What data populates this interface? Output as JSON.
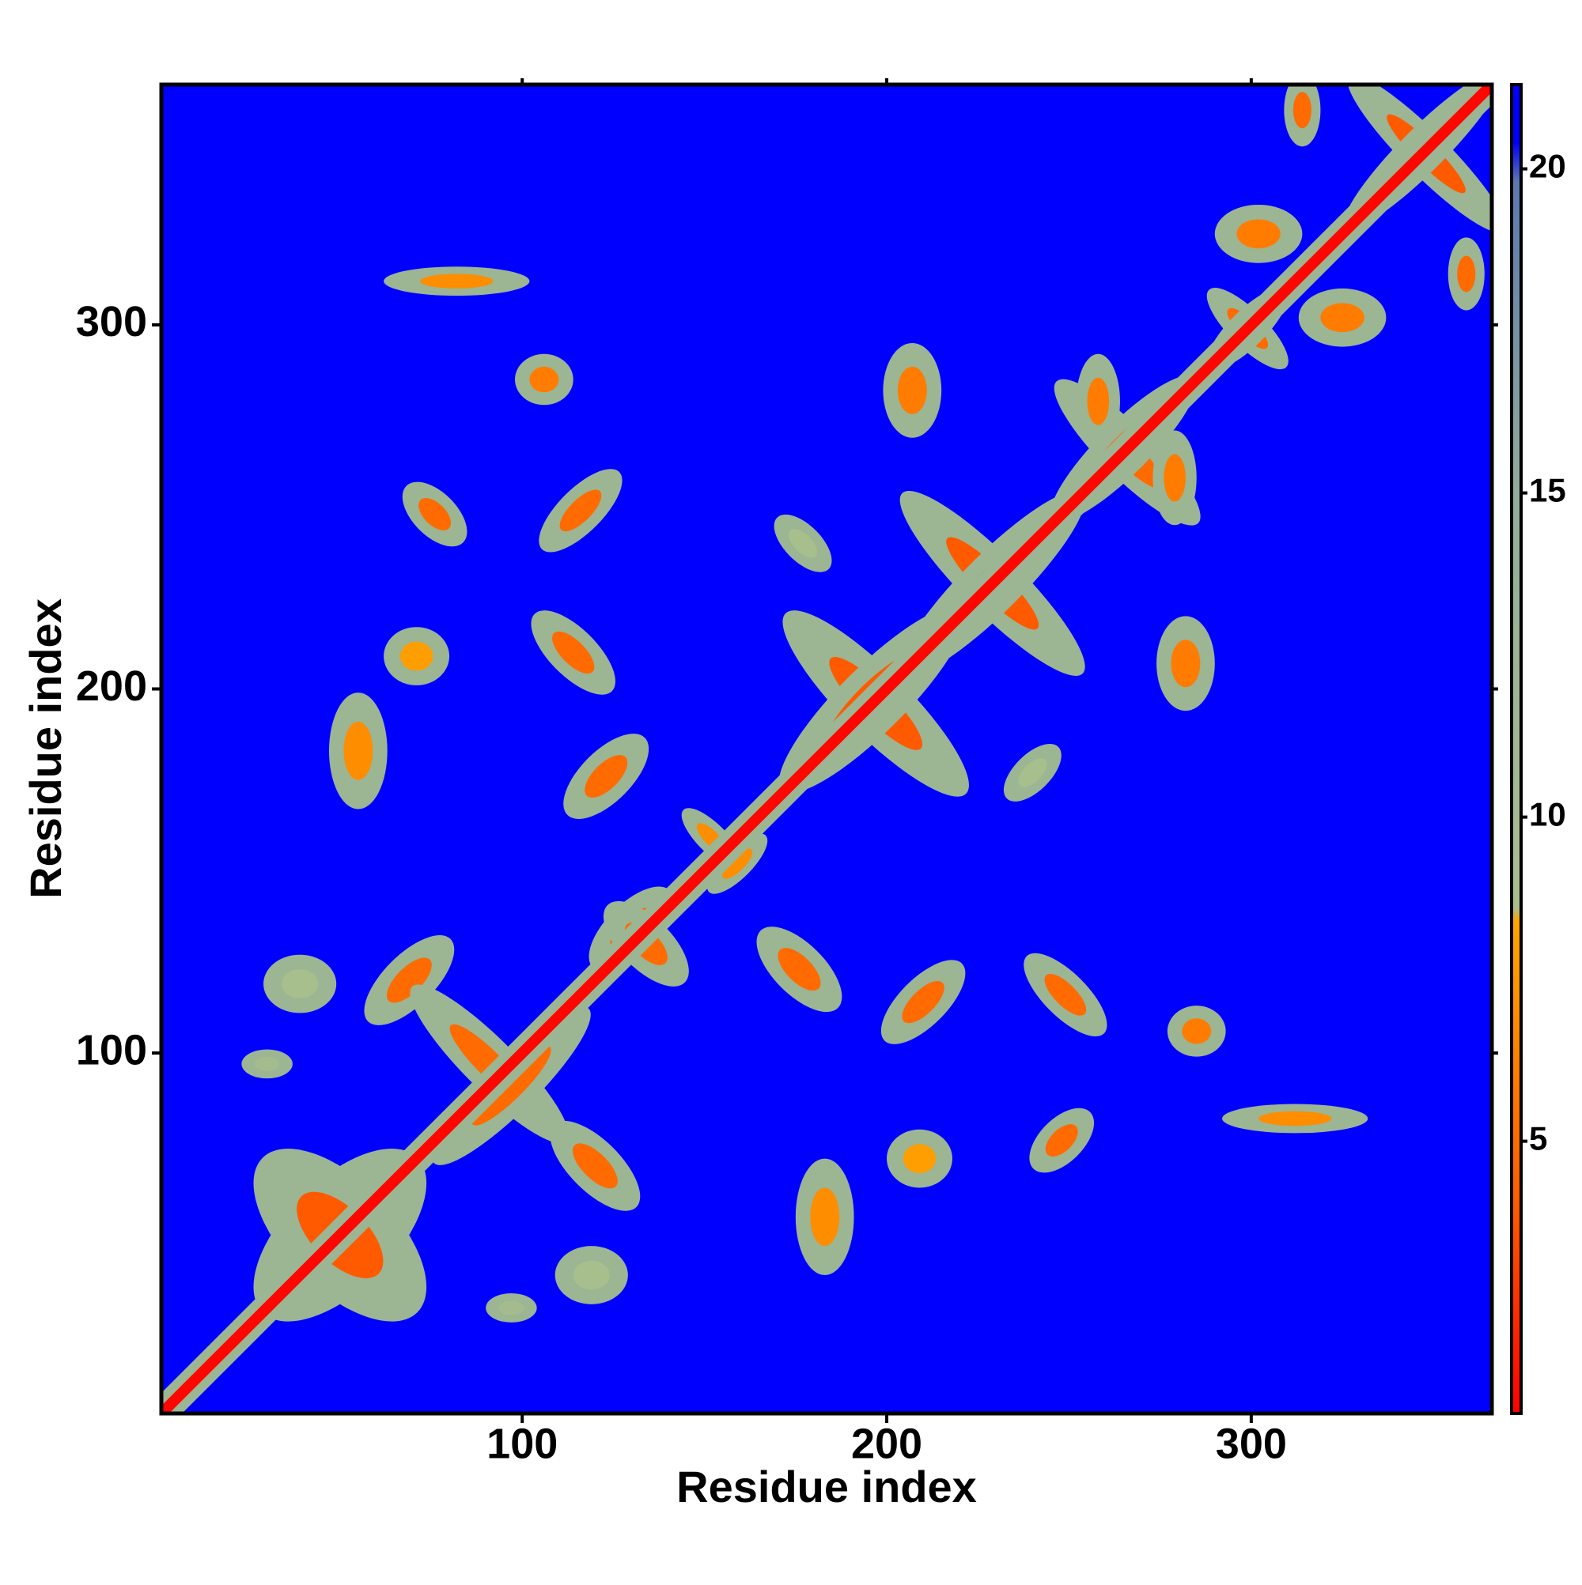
{
  "chart_data": {
    "type": "heatmap",
    "xlabel": "Residue index",
    "ylabel": "Residue index",
    "xlim": [
      1,
      366
    ],
    "ylim": [
      1,
      366
    ],
    "xticks": [
      100,
      200,
      300
    ],
    "yticks": [
      100,
      200,
      300
    ],
    "symmetric": true,
    "background_value": 21.3,
    "halo_value": 12,
    "diagonal_value": 1,
    "colorbar": {
      "lim": [
        0.8,
        21.3
      ],
      "ticks": [
        5,
        10,
        15,
        20
      ],
      "stops": [
        {
          "value": 0.8,
          "color": "#ff0000"
        },
        {
          "value": 4,
          "color": "#ff5a00"
        },
        {
          "value": 8.4,
          "color": "#ffa500"
        },
        {
          "value": 8.6,
          "color": "#a8bf8c"
        },
        {
          "value": 15,
          "color": "#92ad9a"
        },
        {
          "value": 19.8,
          "color": "#5a78b0"
        },
        {
          "value": 20.4,
          "color": "#0000ff"
        },
        {
          "value": 21.3,
          "color": "#0000ff"
        }
      ]
    },
    "patches": [
      {
        "x": 176,
        "y": 123,
        "length": 30,
        "width": 14,
        "angle": -45,
        "value": 5
      },
      {
        "x": 210,
        "y": 114,
        "length": 30,
        "width": 13,
        "angle": 45,
        "value": 5
      },
      {
        "x": 249,
        "y": 116,
        "length": 30,
        "width": 12,
        "angle": -45,
        "value": 5
      },
      {
        "x": 285,
        "y": 106,
        "length": 16,
        "width": 14,
        "angle": 0,
        "value": 6
      },
      {
        "x": 312,
        "y": 82,
        "length": 40,
        "width": 8,
        "angle": 0,
        "value": 7
      },
      {
        "x": 248,
        "y": 76,
        "length": 22,
        "width": 12,
        "angle": 45,
        "value": 5
      },
      {
        "x": 183,
        "y": 55,
        "length": 16,
        "width": 32,
        "angle": 0,
        "value": 7
      },
      {
        "x": 209,
        "y": 71,
        "length": 18,
        "width": 16,
        "angle": 0,
        "value": 8
      },
      {
        "x": 120,
        "y": 69,
        "length": 32,
        "width": 14,
        "angle": -45,
        "value": 5
      },
      {
        "x": 91,
        "y": 97,
        "length": 60,
        "width": 14,
        "angle": -45,
        "value": 5
      },
      {
        "x": 119,
        "y": 39,
        "length": 20,
        "width": 16,
        "angle": 0,
        "value": 9
      },
      {
        "x": 97,
        "y": 30,
        "length": 14,
        "width": 8,
        "angle": 0,
        "value": 10
      },
      {
        "x": 229,
        "y": 229,
        "length": 70,
        "width": 16,
        "angle": -45,
        "value": 4
      },
      {
        "x": 197,
        "y": 196,
        "length": 70,
        "width": 18,
        "angle": -45,
        "value": 4
      },
      {
        "x": 266,
        "y": 265,
        "length": 55,
        "width": 14,
        "angle": -45,
        "value": 5
      },
      {
        "x": 348,
        "y": 347,
        "length": 60,
        "width": 12,
        "angle": -45,
        "value": 4
      },
      {
        "x": 299,
        "y": 299,
        "length": 30,
        "width": 10,
        "angle": -45,
        "value": 5
      },
      {
        "x": 282,
        "y": 207,
        "length": 16,
        "width": 26,
        "angle": 0,
        "value": 6
      },
      {
        "x": 240,
        "y": 177,
        "length": 20,
        "width": 10,
        "angle": 45,
        "value": 9
      },
      {
        "x": 279,
        "y": 258,
        "length": 12,
        "width": 26,
        "angle": 0,
        "value": 6
      },
      {
        "x": 325,
        "y": 302,
        "length": 24,
        "width": 16,
        "angle": 0,
        "value": 6
      },
      {
        "x": 359,
        "y": 314,
        "length": 10,
        "width": 20,
        "angle": 0,
        "value": 5
      },
      {
        "x": 152,
        "y": 159,
        "length": 22,
        "width": 8,
        "angle": -45,
        "value": 7
      },
      {
        "x": 130,
        "y": 134,
        "length": 30,
        "width": 14,
        "angle": 45,
        "value": 5
      },
      {
        "x": 50,
        "y": 50,
        "length": 60,
        "width": 30,
        "angle": 45,
        "value": 4
      }
    ]
  }
}
